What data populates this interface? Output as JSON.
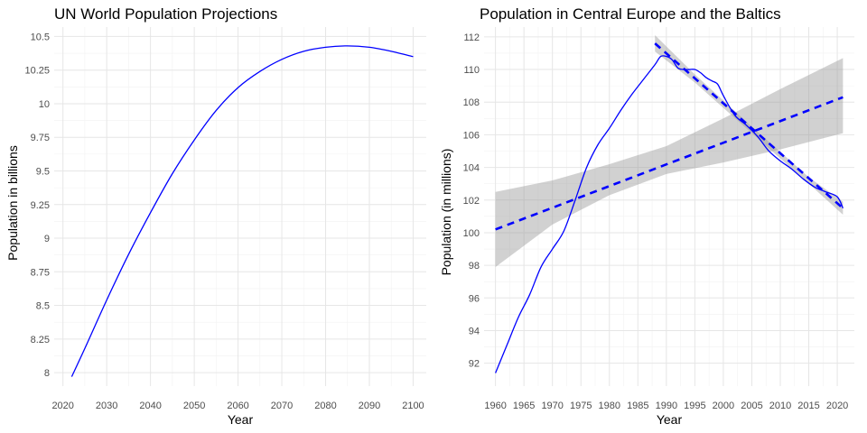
{
  "chart_data": [
    {
      "type": "line",
      "title": "UN World Population Projections",
      "xlabel": "Year",
      "ylabel": "Population in billions",
      "xlim": [
        2018,
        2103
      ],
      "ylim": [
        7.9,
        10.57
      ],
      "x_ticks": [
        2020,
        2030,
        2040,
        2050,
        2060,
        2070,
        2080,
        2090,
        2100
      ],
      "y_ticks": [
        8,
        8.25,
        8.5,
        8.75,
        9,
        9.25,
        9.5,
        9.75,
        10,
        10.25,
        10.5
      ],
      "y_tick_labels": [
        "8",
        "8.25",
        "8.5",
        "8.75",
        "9",
        "9.25",
        "9.5",
        "9.75",
        "10",
        "10.25",
        "10.5"
      ],
      "grid": true,
      "series": [
        {
          "color": "#0000ff",
          "x": [
            2022,
            2025,
            2030,
            2035,
            2040,
            2045,
            2050,
            2055,
            2060,
            2065,
            2070,
            2075,
            2080,
            2085,
            2090,
            2095,
            2100
          ],
          "y": [
            7.97,
            8.18,
            8.54,
            8.88,
            9.19,
            9.48,
            9.73,
            9.95,
            10.12,
            10.24,
            10.33,
            10.39,
            10.42,
            10.43,
            10.42,
            10.39,
            10.35
          ]
        }
      ]
    },
    {
      "type": "line",
      "title": "Population in Central Europe and the Baltics",
      "xlabel": "Year",
      "ylabel": "Population (in millions)",
      "xlim": [
        1958,
        2023
      ],
      "ylim": [
        90.6,
        112.6
      ],
      "x_ticks": [
        1960,
        1965,
        1970,
        1975,
        1980,
        1985,
        1990,
        1995,
        2000,
        2005,
        2010,
        2015,
        2020
      ],
      "y_ticks": [
        92,
        94,
        96,
        98,
        100,
        102,
        104,
        106,
        108,
        110,
        112
      ],
      "grid": true,
      "series": [
        {
          "color": "#0000ff",
          "x": [
            1960,
            1962,
            1964,
            1966,
            1968,
            1970,
            1972,
            1974,
            1976,
            1978,
            1980,
            1982,
            1984,
            1986,
            1988,
            1989,
            1990,
            1991,
            1992,
            1993,
            1994,
            1995,
            1996,
            1997,
            1998,
            1999,
            2000,
            2002,
            2004,
            2006,
            2008,
            2010,
            2012,
            2014,
            2016,
            2018,
            2020,
            2021
          ],
          "y": [
            91.4,
            93.1,
            94.8,
            96.2,
            97.9,
            99.0,
            100.1,
            102.0,
            104.0,
            105.4,
            106.4,
            107.5,
            108.5,
            109.4,
            110.3,
            110.8,
            110.8,
            110.6,
            110.1,
            110.0,
            110.0,
            110.0,
            109.8,
            109.5,
            109.3,
            109.1,
            108.4,
            107.2,
            106.6,
            105.9,
            105.0,
            104.4,
            103.9,
            103.3,
            102.8,
            102.5,
            102.2,
            101.5
          ]
        },
        {
          "color": "#0000ff",
          "style": "dashed",
          "x": [
            1960,
            2021
          ],
          "y": [
            100.2,
            108.3
          ],
          "band_x": [
            1960,
            1970,
            1980,
            1990,
            2000,
            2010,
            2021
          ],
          "band_lower": [
            97.9,
            100.5,
            102.3,
            103.6,
            104.3,
            105.1,
            106.1
          ],
          "band_upper": [
            102.5,
            103.2,
            104.2,
            105.3,
            107.0,
            108.8,
            110.7
          ]
        },
        {
          "color": "#0000ff",
          "style": "dashed",
          "x": [
            1988,
            2021
          ],
          "y": [
            111.6,
            101.5
          ],
          "band_x": [
            1988,
            1995,
            2005,
            2015,
            2021
          ],
          "band_lower": [
            111.1,
            109.2,
            106.1,
            103.0,
            101.1
          ],
          "band_upper": [
            112.1,
            109.7,
            106.5,
            103.4,
            101.9
          ]
        }
      ]
    }
  ]
}
